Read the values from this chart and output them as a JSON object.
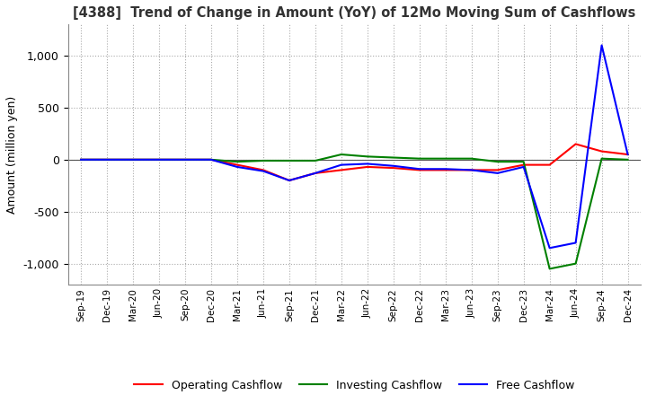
{
  "title": "[4388]  Trend of Change in Amount (YoY) of 12Mo Moving Sum of Cashflows",
  "ylabel": "Amount (million yen)",
  "x_labels": [
    "Sep-19",
    "Dec-19",
    "Mar-20",
    "Jun-20",
    "Sep-20",
    "Dec-20",
    "Mar-21",
    "Jun-21",
    "Sep-21",
    "Dec-21",
    "Mar-22",
    "Jun-22",
    "Sep-22",
    "Dec-22",
    "Mar-23",
    "Jun-23",
    "Sep-23",
    "Dec-23",
    "Mar-24",
    "Jun-24",
    "Sep-24",
    "Dec-24"
  ],
  "operating": [
    0,
    0,
    0,
    0,
    0,
    0,
    -50,
    -100,
    -200,
    -130,
    -100,
    -70,
    -80,
    -100,
    -100,
    -100,
    -100,
    -50,
    -50,
    150,
    80,
    50
  ],
  "investing": [
    0,
    0,
    0,
    0,
    0,
    0,
    -20,
    -10,
    -10,
    -10,
    50,
    30,
    20,
    10,
    10,
    10,
    -20,
    -20,
    -1050,
    -1000,
    10,
    0
  ],
  "free": [
    0,
    0,
    0,
    0,
    0,
    0,
    -70,
    -110,
    -200,
    -130,
    -50,
    -40,
    -60,
    -90,
    -90,
    -100,
    -130,
    -70,
    -850,
    -800,
    1100,
    50
  ],
  "ylim": [
    -1200,
    1300
  ],
  "yticks": [
    -1000,
    -500,
    0,
    500,
    1000
  ],
  "operating_color": "#ff0000",
  "investing_color": "#008000",
  "free_color": "#0000ff",
  "bg_color": "#ffffff",
  "grid_color": "#aaaaaa",
  "title_color": "#333333"
}
